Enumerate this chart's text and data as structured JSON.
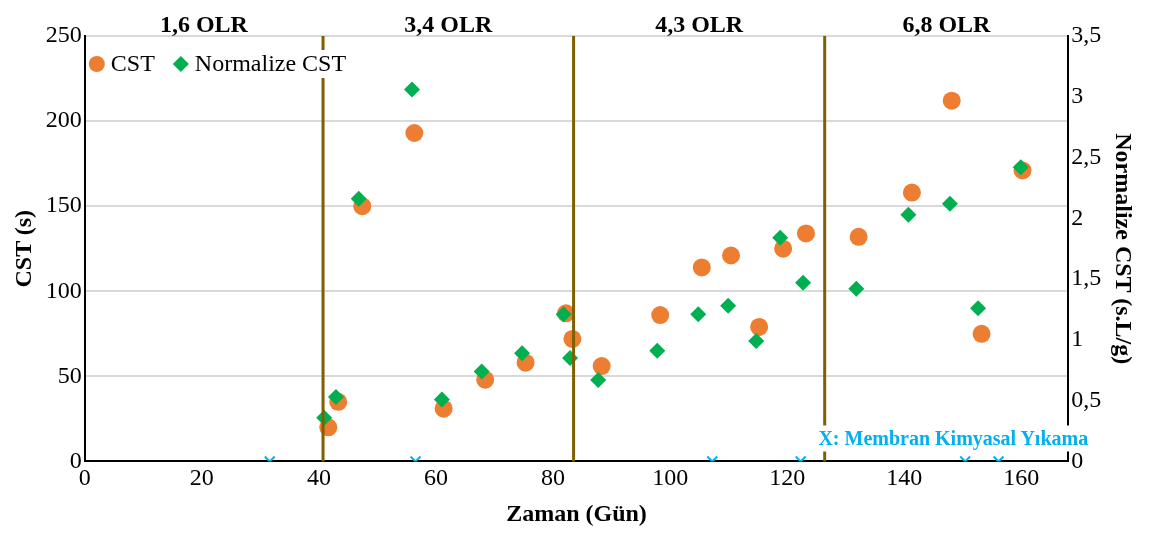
{
  "chart_data": {
    "type": "scatter",
    "xlabel": "Zaman (Gün)",
    "ylabel": "CST (s)",
    "y2label": "Normalize CST (s.L/g)",
    "xlim": [
      0,
      168
    ],
    "xticks": [
      0,
      20,
      40,
      60,
      80,
      100,
      120,
      140,
      160
    ],
    "ylim": [
      0,
      250
    ],
    "yticks": [
      0,
      50,
      100,
      150,
      200,
      250
    ],
    "y2lim": [
      0,
      3.5
    ],
    "y2ticks": [
      {
        "value": 0,
        "label": "0"
      },
      {
        "value": 0.5,
        "label": "0,5"
      },
      {
        "value": 1,
        "label": "1"
      },
      {
        "value": 1.5,
        "label": "1,5"
      },
      {
        "value": 2,
        "label": "2"
      },
      {
        "value": 2.5,
        "label": "2,5"
      },
      {
        "value": 3,
        "label": "3"
      },
      {
        "value": 3.5,
        "label": "3,5"
      }
    ],
    "grid": "y",
    "legend": "top left",
    "series": [
      {
        "name": "CST",
        "color": "#ed7d31",
        "marker": "circle",
        "x": [
          41.6,
          43.3,
          47.4,
          56.3,
          61.3,
          68.4,
          75.3,
          82.2,
          83.3,
          88.3,
          98.3,
          105.4,
          110.4,
          115.2,
          119.3,
          123.2,
          132.2,
          141.3,
          148.1,
          153.2,
          160.2
        ],
        "values": [
          20,
          35,
          150,
          193,
          31,
          48,
          58,
          87,
          72,
          56,
          86,
          114,
          121,
          79,
          125,
          134,
          132,
          158,
          212,
          75,
          171
        ]
      },
      {
        "name": "Normalize CST",
        "color": "#00b050",
        "marker": "diamond",
        "axis": "y2",
        "x": [
          40.9,
          42.9,
          46.8,
          55.9,
          61,
          67.8,
          74.7,
          81.8,
          82.9,
          87.7,
          97.8,
          104.8,
          109.9,
          114.7,
          118.8,
          122.7,
          131.8,
          140.7,
          147.8,
          152.6,
          159.9
        ],
        "values": [
          0.36,
          0.53,
          2.16,
          3.06,
          0.51,
          0.74,
          0.89,
          1.21,
          0.85,
          0.67,
          0.91,
          1.21,
          1.28,
          0.99,
          1.84,
          1.47,
          1.42,
          2.03,
          2.12,
          1.26,
          2.42
        ]
      },
      {
        "color": "#00b0f0",
        "marker": "cross",
        "x": [
          31.6,
          56.5,
          107.2,
          122.3,
          150.4,
          156.1
        ],
        "values": [
          0,
          0,
          0,
          0,
          0,
          0
        ]
      }
    ],
    "ref_lines": [
      {
        "axis": "x",
        "value": 40.7,
        "color": "#7f6000"
      },
      {
        "axis": "x",
        "value": 83.5,
        "color": "#7f6000"
      },
      {
        "axis": "x",
        "value": 126.4,
        "color": "#7f6000"
      }
    ],
    "annotations": [
      "1,6 OLR",
      "3,4 OLR",
      "4,3 OLR",
      "6,8 OLR",
      "X: Membran Kimyasal Yıkama"
    ]
  }
}
